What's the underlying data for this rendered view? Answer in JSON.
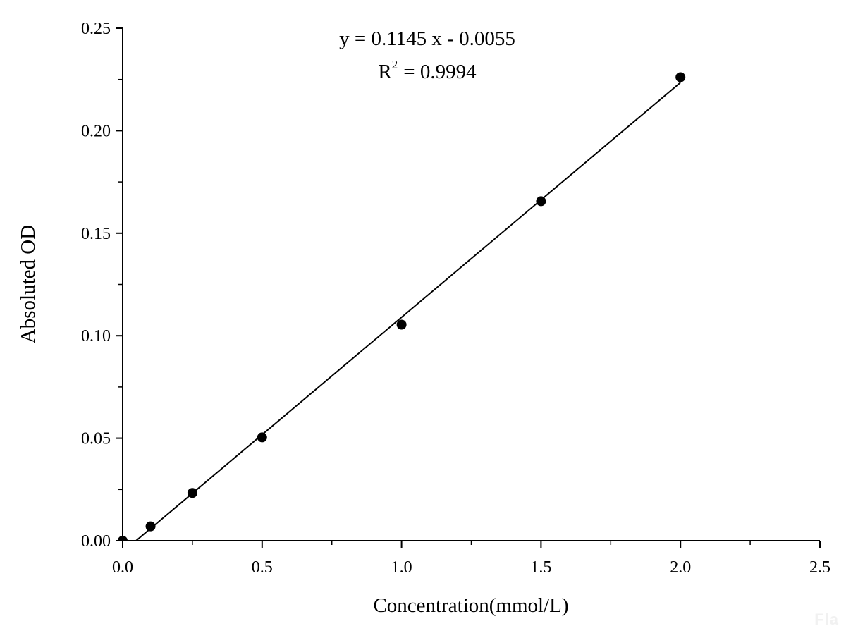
{
  "chart_data": {
    "type": "scatter",
    "title": "",
    "xlabel": "Concentration(mmol/L)",
    "ylabel": "Absoluted OD",
    "xlim": [
      0,
      2.5
    ],
    "ylim": [
      0,
      0.25
    ],
    "x_ticks": [
      "0.0",
      "0.5",
      "1.0",
      "1.5",
      "2.0",
      "2.5"
    ],
    "y_ticks": [
      "0.00",
      "0.05",
      "0.10",
      "0.15",
      "0.20",
      "0.25"
    ],
    "grid": false,
    "legend": "none",
    "series": [
      {
        "x": [
          0,
          0.1,
          0.25,
          0.5,
          1.0,
          1.5,
          2.0
        ],
        "y": [
          0.0,
          0.007,
          0.0233,
          0.0504,
          0.1054,
          0.1656,
          0.2261
        ],
        "marker": "filled-circle",
        "color": "#000000"
      }
    ],
    "fit_line": {
      "slope": 0.1145,
      "intercept": -0.0055,
      "x_range": [
        0.048,
        2.0
      ],
      "color": "#000000"
    },
    "annotations": {
      "equation": "y = 0.1145 x - 0.0055",
      "r2_prefix": "R",
      "r2_exponent": "2",
      "r2_value": "= 0.9994"
    }
  },
  "watermark": "Fla"
}
